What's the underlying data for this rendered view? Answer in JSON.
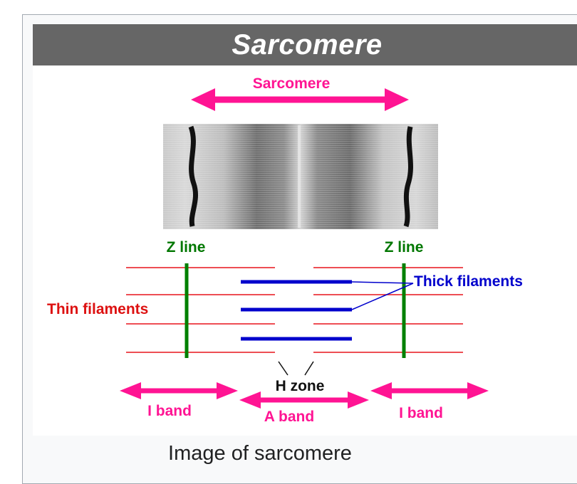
{
  "infobox": {
    "title": "Sarcomere",
    "caption": "Image of sarcomere"
  },
  "diagram": {
    "labels": {
      "sarcomere": "Sarcomere",
      "z_line_left": "Z line",
      "z_line_right": "Z line",
      "thick_filaments": "Thick filaments",
      "thin_filaments": "Thin filaments",
      "h_zone": "H zone",
      "i_band_left": "I band",
      "a_band": "A band",
      "i_band_right": "I band"
    },
    "colors": {
      "title_bar": "#666666",
      "arrow_magenta": "#ff1493",
      "z_line_green": "#008000",
      "thin_filament_red": "#e8141c",
      "thick_filament_blue": "#0000cc",
      "label_red": "#dd1111",
      "label_blue": "#0000cc",
      "label_green": "#007700",
      "label_magenta": "#ff1493"
    }
  }
}
